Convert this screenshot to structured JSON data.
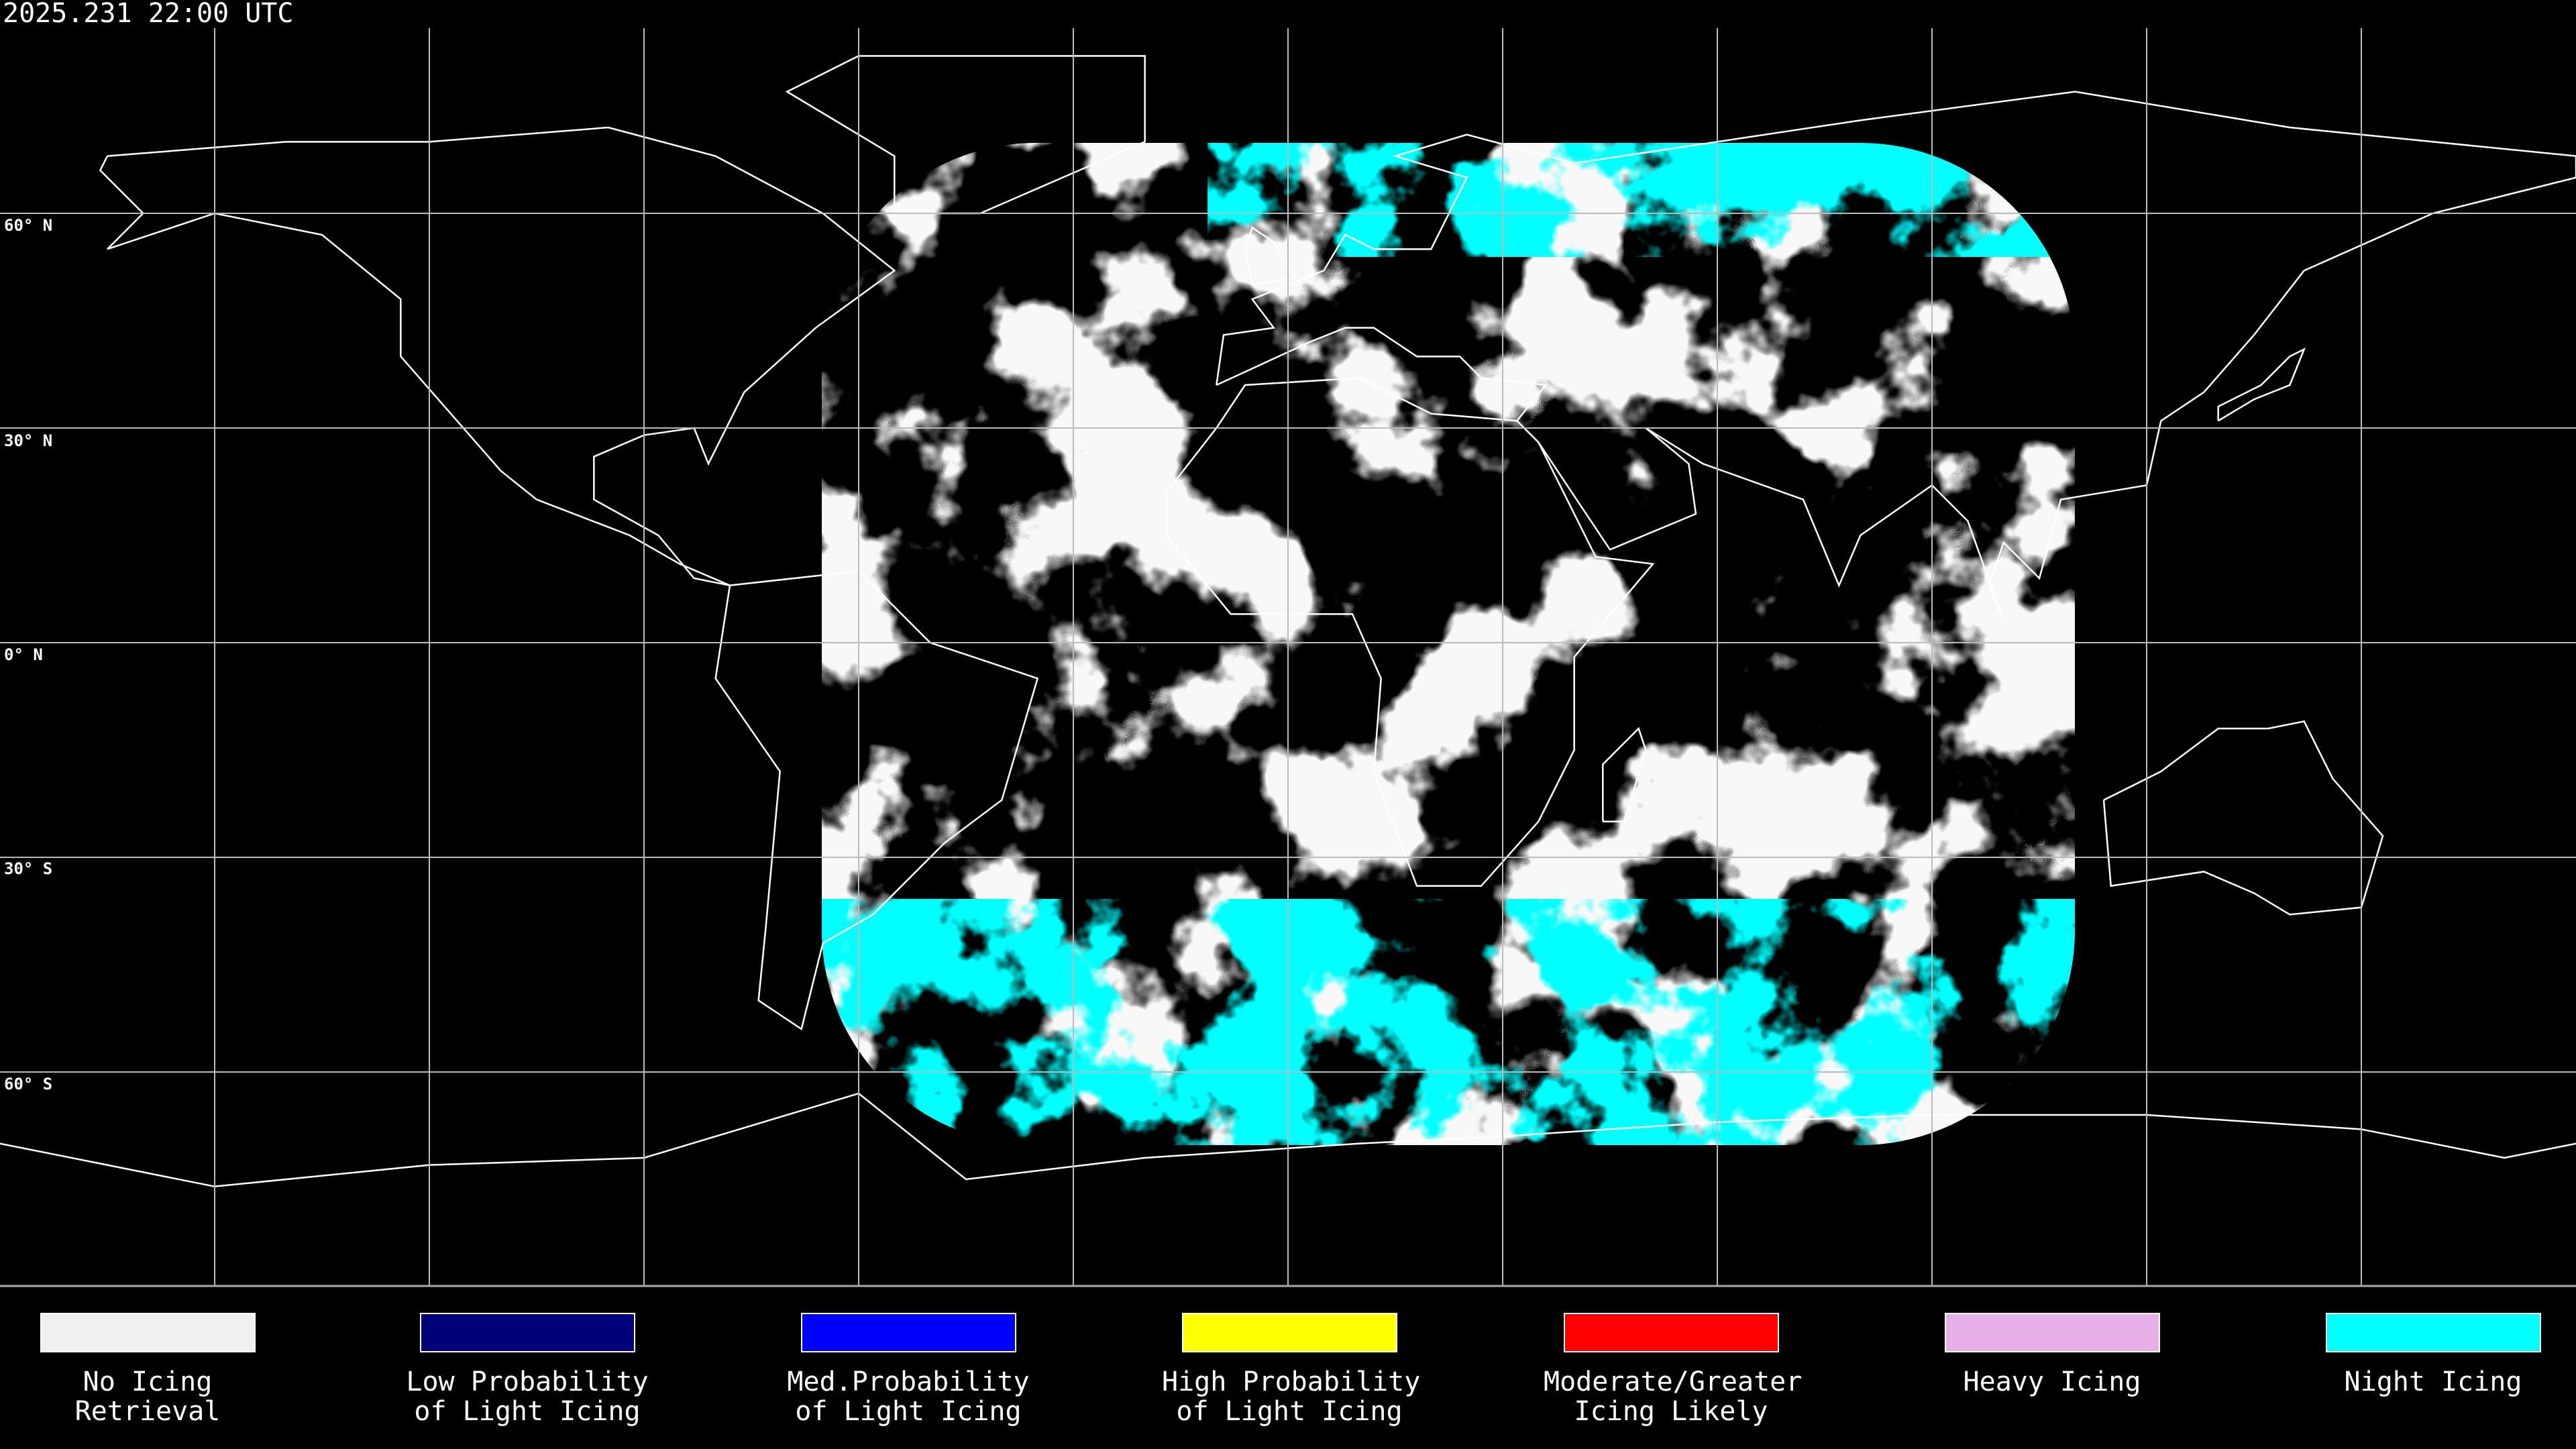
{
  "header": {
    "title": "2025.231 22:00 UTC"
  },
  "map": {
    "projection": "equirectangular",
    "grid_spacing_deg": 30,
    "lat_labels": [
      "60° N",
      "30° N",
      "0° N",
      "30° S",
      "60° S"
    ],
    "satellite_disk_colors": {
      "cloud": "#f0f0f0",
      "night": "#00ffff"
    }
  },
  "legend": {
    "items": [
      {
        "line1": "No Icing",
        "line2": "Retrieval",
        "color": "#f0f0f0"
      },
      {
        "line1": "Low Probability",
        "line2": "of Light Icing",
        "color": "#000078"
      },
      {
        "line1": "Med.Probability",
        "line2": "of Light Icing",
        "color": "#0000ff"
      },
      {
        "line1": "High Probability",
        "line2": "of Light Icing",
        "color": "#ffff00"
      },
      {
        "line1": "Moderate/Greater",
        "line2": "Icing Likely",
        "color": "#ff0000"
      },
      {
        "line1": "Heavy Icing",
        "line2": "",
        "color": "#e8aee8"
      },
      {
        "line1": "Night Icing",
        "line2": "",
        "color": "#00ffff"
      }
    ]
  }
}
